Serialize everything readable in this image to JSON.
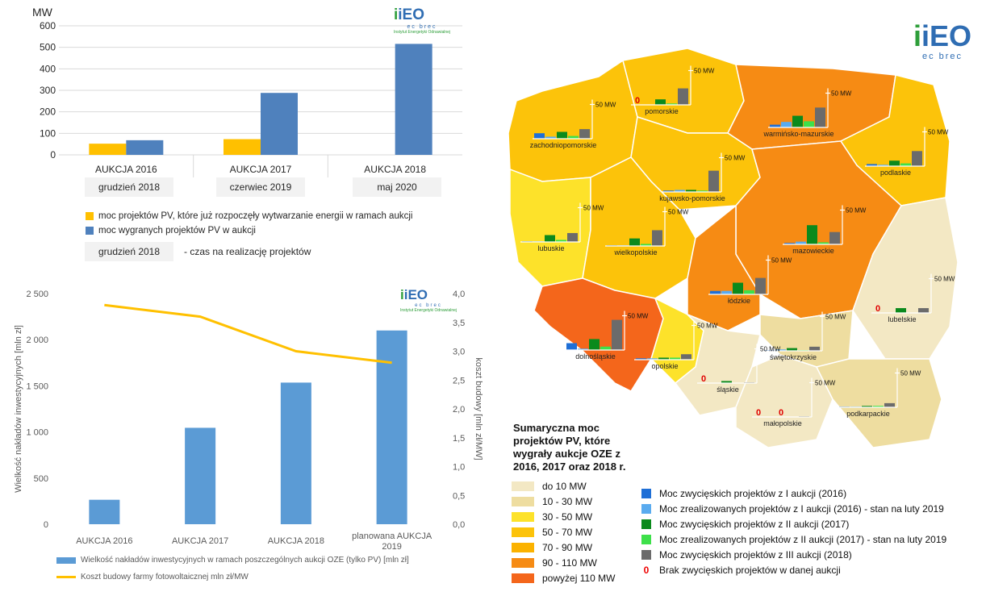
{
  "panel1": {
    "y_unit": "MW",
    "logo": {
      "brand": "iEO",
      "tagline": "ec brec",
      "institute": "Instytut Energetyki Odnawialnej"
    },
    "deadline_labels": [
      "grudzień 2018",
      "czerwiec 2019",
      "maj 2020"
    ],
    "legend": {
      "yellow": "moc projektów PV, które już rozpoczęły wytwarzanie energii w ramach aukcji",
      "blue": "moc wygranych projektów PV w aukcji",
      "box": "grudzień 2018",
      "box_desc": "- czas na realizację projektów"
    }
  },
  "panel2": {
    "logo": {
      "brand": "iEO",
      "tagline": "ec brec",
      "institute": "Instytut Energetyki Odnawialnej"
    },
    "legend_bar": "Wielkość nakładów inwestycyjnych w ramach poszczególnych aukcji OZE (tylko PV) [mln zł]",
    "legend_line": "Koszt budowy farmy fotowoltaicznej mln zł/MW"
  },
  "map": {
    "logo": {
      "brand": "iEO",
      "tagline": "ec brec"
    },
    "title_lines": [
      "Sumaryczna moc",
      "projektów PV, które",
      "wygrały aukcje OZE z",
      "2016, 2017 oraz 2018 r."
    ],
    "scale_label": "50 MW",
    "colors": {
      "b1": "#f3e8c4",
      "b2": "#eedda0",
      "b3": "#fde22a",
      "b4": "#fcc30a",
      "b5": "#fbb200",
      "b6": "#f68b14",
      "b7": "#f4661b"
    },
    "bands": [
      {
        "label": "do 10 MW",
        "color": "#f3e8c4"
      },
      {
        "label": "10 - 30 MW",
        "color": "#eedda0"
      },
      {
        "label": "30 - 50 MW",
        "color": "#fde22a"
      },
      {
        "label": "50 - 70 MW",
        "color": "#fcc30a"
      },
      {
        "label": "70 - 90 MW",
        "color": "#fbb200"
      },
      {
        "label": "90 - 110 MW",
        "color": "#f68b14"
      },
      {
        "label": "powyżej 110 MW",
        "color": "#f4661b"
      }
    ],
    "series": [
      {
        "label": "Moc zwycięskich projektów z I aukcji (2016)",
        "color": "#1f6fd6"
      },
      {
        "label": "Moc zrealizowanych projektów z I aukcji (2016) - stan na luty 2019",
        "color": "#5aabef"
      },
      {
        "label": "Moc zwycięskich projektów z II aukcji (2017)",
        "color": "#0b8a1c"
      },
      {
        "label": "Moc zrealizowanych projektów z II aukcji (2017) - stan na luty 2019",
        "color": "#3ee04a"
      },
      {
        "label": "Moc zwycięskich projektów z III aukcji (2018)",
        "color": "#6b6b6b"
      }
    ],
    "zero_marker": "0",
    "zero_label": "Brak zwycięskich projektów w danej aukcji",
    "regions": [
      {
        "name": "zachodniopomorskie",
        "values": [
          8,
          3,
          10,
          4,
          14
        ]
      },
      {
        "name": "pomorskie",
        "values": [
          0,
          0,
          8,
          2,
          24
        ]
      },
      {
        "name": "warmińsko-mazurskie",
        "values": [
          4,
          8,
          17,
          9,
          29
        ]
      },
      {
        "name": "podlaskie",
        "values": [
          3,
          2,
          8,
          4,
          22
        ]
      },
      {
        "name": "kujawsko-pomorskie",
        "values": [
          2,
          3,
          3,
          2,
          31
        ]
      },
      {
        "name": "lubuskie",
        "values": [
          1,
          1,
          10,
          3,
          13
        ]
      },
      {
        "name": "wielkopolskie",
        "values": [
          1,
          1,
          11,
          3,
          23
        ]
      },
      {
        "name": "mazowieckie",
        "values": [
          2,
          4,
          28,
          3,
          18
        ]
      },
      {
        "name": "łódzkie",
        "values": [
          5,
          5,
          17,
          6,
          24
        ]
      },
      {
        "name": "dolnośląskie",
        "values": [
          10,
          2,
          16,
          5,
          44
        ]
      },
      {
        "name": "opolskie",
        "values": [
          2,
          2,
          3,
          3,
          8
        ]
      },
      {
        "name": "lubelskie",
        "values": [
          0,
          0,
          7,
          0,
          7
        ]
      },
      {
        "name": "świętokrzyskie",
        "values": [
          1,
          2,
          4,
          1,
          6
        ]
      },
      {
        "name": "śląskie",
        "values": [
          0,
          0,
          3,
          0,
          1
        ]
      },
      {
        "name": "małopolskie",
        "values": [
          0,
          0,
          0,
          0,
          1
        ]
      },
      {
        "name": "podkarpackie",
        "values": [
          1,
          1,
          2,
          2,
          6
        ]
      }
    ]
  },
  "chart_data": [
    {
      "type": "bar",
      "title": "",
      "ylabel": "MW",
      "categories": [
        "AUKCJA 2016",
        "AUKCJA 2017",
        "AUKCJA 2018"
      ],
      "ylim": [
        0,
        600
      ],
      "yticks": [
        "0",
        "100",
        "200",
        "300",
        "400",
        "500",
        "600"
      ],
      "grid": true,
      "series": [
        {
          "name": "moc projektów PV, które już rozpoczęły wytwarzanie energii w ramach aukcji",
          "color": "#ffc000",
          "values": [
            52,
            73,
            0
          ]
        },
        {
          "name": "moc wygranych projektów PV w aukcji",
          "color": "#4f81bd",
          "values": [
            68,
            288,
            516
          ]
        }
      ]
    },
    {
      "type": "bar",
      "title": "",
      "ylabel": "Wielkość nakładów inwestycyjnych [mln zł]",
      "y2label": "koszt budowy [mln zł/MW]",
      "categories": [
        "AUKCJA 2016",
        "AUKCJA 2017",
        "AUKCJA 2018",
        "planowana AUKCJA 2019"
      ],
      "ylim": [
        0,
        2500
      ],
      "yticks": [
        "0",
        "500",
        "1 000",
        "1 500",
        "2 000",
        "2 500"
      ],
      "y2lim": [
        0,
        4
      ],
      "y2ticks": [
        "0,0",
        "0,5",
        "1,0",
        "1,5",
        "2,0",
        "2,5",
        "3,0",
        "3,5",
        "4,0"
      ],
      "series": [
        {
          "name": "Wielkość nakładów inwestycyjnych w ramach poszczególnych aukcji OZE (tylko PV) [mln zł]",
          "color": "#5b9bd5",
          "values": [
            265,
            1045,
            1535,
            2100
          ]
        },
        {
          "name": "Koszt budowy farmy fotowoltaicznej mln zł/MW",
          "color": "#ffc000",
          "axis": "right",
          "values": [
            3.8,
            3.6,
            3.0,
            2.8
          ]
        }
      ]
    }
  ]
}
